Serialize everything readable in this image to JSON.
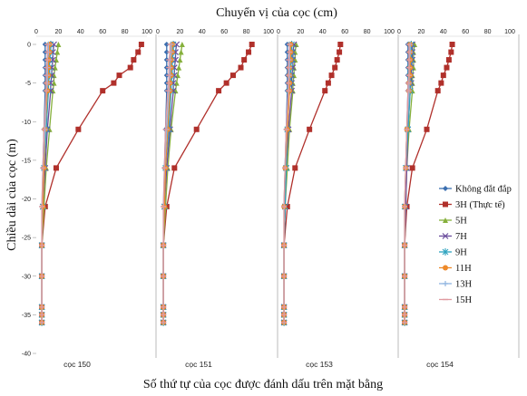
{
  "chart_data": {
    "type": "line",
    "title": "Chuyển vị của cọc (cm)",
    "xlabel": "Số thứ tự của cọc được đánh dấu trên mặt bằng",
    "ylabel": "Chiều dài của cọc (m)",
    "xlim": [
      0,
      100
    ],
    "ylim": [
      -40,
      0
    ],
    "xticks": [
      "0",
      "20",
      "40",
      "60",
      "80",
      "100"
    ],
    "yticks": [
      "0",
      "-5",
      "-10",
      "-15",
      "-20",
      "-25",
      "-30",
      "-35",
      "-40"
    ],
    "legend_position": "right",
    "depths": [
      0,
      -1,
      -2,
      -3,
      -4,
      -5,
      -6,
      -11,
      -16,
      -21,
      -26,
      -30,
      -34,
      -35,
      -36
    ],
    "legend": [
      {
        "name": "Không đắt đắp",
        "color": "#3b6fb0",
        "marker": "diamond"
      },
      {
        "name": "3H (Thực tế)",
        "color": "#b0302b",
        "marker": "square"
      },
      {
        "name": "5H",
        "color": "#86b03c",
        "marker": "triangle"
      },
      {
        "name": "7H",
        "color": "#6a4c9c",
        "marker": "x"
      },
      {
        "name": "9H",
        "color": "#2ea3bf",
        "marker": "star"
      },
      {
        "name": "11H",
        "color": "#ee8a2a",
        "marker": "circle"
      },
      {
        "name": "13H",
        "color": "#8fb4e0",
        "marker": "plus"
      },
      {
        "name": "15H",
        "color": "#e09aa0",
        "marker": "dash"
      }
    ],
    "panels": [
      {
        "label": "cọc 150",
        "series": [
          {
            "name": "Không đắt đắp",
            "values": [
              8,
              8,
              8,
              8,
              8,
              8,
              8,
              7,
              6,
              6,
              5,
              5,
              5,
              5,
              5
            ]
          },
          {
            "name": "3H (Thực tế)",
            "values": [
              95,
              92,
              88,
              85,
              75,
              70,
              60,
              38,
              18,
              8,
              5,
              5,
              5,
              5,
              5
            ]
          },
          {
            "name": "5H",
            "values": [
              20,
              19,
              18,
              17,
              16,
              16,
              15,
              12,
              9,
              7,
              5,
              5,
              5,
              5,
              5
            ]
          },
          {
            "name": "7H",
            "values": [
              16,
              15,
              15,
              14,
              14,
              13,
              13,
              10,
              8,
              6,
              5,
              5,
              5,
              5,
              5
            ]
          },
          {
            "name": "9H",
            "values": [
              13,
              13,
              12,
              12,
              12,
              11,
              11,
              9,
              7,
              6,
              5,
              5,
              5,
              5,
              5
            ]
          },
          {
            "name": "11H",
            "values": [
              12,
              12,
              11,
              11,
              11,
              10,
              10,
              8,
              7,
              6,
              5,
              5,
              5,
              5,
              5
            ]
          },
          {
            "name": "13H",
            "values": [
              11,
              11,
              10,
              10,
              10,
              10,
              9,
              8,
              6,
              5,
              5,
              5,
              5,
              5,
              5
            ]
          },
          {
            "name": "15H",
            "values": [
              10,
              10,
              10,
              9,
              9,
              9,
              9,
              7,
              6,
              5,
              5,
              5,
              5,
              5,
              5
            ]
          }
        ]
      },
      {
        "label": "cọc 151",
        "series": [
          {
            "name": "Không đắt đắp",
            "values": [
              8,
              8,
              8,
              8,
              8,
              8,
              8,
              7,
              6,
              6,
              5,
              5,
              5,
              5,
              5
            ]
          },
          {
            "name": "3H (Thực tế)",
            "values": [
              85,
              82,
              78,
              75,
              68,
              62,
              55,
              35,
              15,
              8,
              5,
              5,
              5,
              5,
              5
            ]
          },
          {
            "name": "5H",
            "values": [
              22,
              21,
              20,
              19,
              18,
              17,
              16,
              12,
              9,
              7,
              5,
              5,
              5,
              5,
              5
            ]
          },
          {
            "name": "7H",
            "values": [
              17,
              16,
              16,
              15,
              15,
              14,
              14,
              11,
              8,
              6,
              5,
              5,
              5,
              5,
              5
            ]
          },
          {
            "name": "9H",
            "values": [
              14,
              14,
              13,
              13,
              13,
              12,
              12,
              10,
              7,
              6,
              5,
              5,
              5,
              5,
              5
            ]
          },
          {
            "name": "11H",
            "values": [
              13,
              13,
              12,
              12,
              12,
              11,
              11,
              9,
              7,
              6,
              5,
              5,
              5,
              5,
              5
            ]
          },
          {
            "name": "13H",
            "values": [
              12,
              12,
              11,
              11,
              11,
              10,
              10,
              8,
              6,
              5,
              5,
              5,
              5,
              5,
              5
            ]
          },
          {
            "name": "15H",
            "values": [
              11,
              11,
              10,
              10,
              10,
              10,
              9,
              7,
              6,
              5,
              5,
              5,
              5,
              5,
              5
            ]
          }
        ]
      },
      {
        "label": "cọc 153",
        "series": [
          {
            "name": "Không đắt đắp",
            "values": [
              8,
              8,
              8,
              8,
              8,
              8,
              8,
              7,
              6,
              6,
              5,
              5,
              5,
              5,
              5
            ]
          },
          {
            "name": "3H (Thực tế)",
            "values": [
              56,
              55,
              53,
              51,
              48,
              45,
              42,
              28,
              15,
              8,
              5,
              5,
              5,
              5,
              5
            ]
          },
          {
            "name": "5H",
            "values": [
              16,
              15,
              15,
              14,
              14,
              13,
              13,
              10,
              8,
              6,
              5,
              5,
              5,
              5,
              5
            ]
          },
          {
            "name": "7H",
            "values": [
              14,
              13,
              13,
              13,
              12,
              12,
              12,
              9,
              7,
              6,
              5,
              5,
              5,
              5,
              5
            ]
          },
          {
            "name": "9H",
            "values": [
              12,
              12,
              12,
              11,
              11,
              11,
              10,
              8,
              7,
              6,
              5,
              5,
              5,
              5,
              5
            ]
          },
          {
            "name": "11H",
            "values": [
              11,
              11,
              11,
              10,
              10,
              10,
              10,
              8,
              6,
              5,
              5,
              5,
              5,
              5,
              5
            ]
          },
          {
            "name": "13H",
            "values": [
              10,
              10,
              10,
              10,
              10,
              9,
              9,
              7,
              6,
              5,
              5,
              5,
              5,
              5,
              5
            ]
          },
          {
            "name": "15H",
            "values": [
              10,
              10,
              9,
              9,
              9,
              9,
              9,
              7,
              6,
              5,
              5,
              5,
              5,
              5,
              5
            ]
          }
        ]
      },
      {
        "label": "cọc 154",
        "series": [
          {
            "name": "Không đắt đắp",
            "values": [
              8,
              8,
              8,
              8,
              8,
              8,
              8,
              7,
              6,
              6,
              5,
              5,
              5,
              5,
              5
            ]
          },
          {
            "name": "3H (Thực tế)",
            "values": [
              48,
              47,
              45,
              43,
              40,
              38,
              35,
              25,
              12,
              7,
              5,
              5,
              5,
              5,
              5
            ]
          },
          {
            "name": "5H",
            "values": [
              14,
              13,
              13,
              13,
              12,
              12,
              12,
              9,
              7,
              6,
              5,
              5,
              5,
              5,
              5
            ]
          },
          {
            "name": "7H",
            "values": [
              12,
              12,
              12,
              11,
              11,
              11,
              10,
              8,
              7,
              6,
              5,
              5,
              5,
              5,
              5
            ]
          },
          {
            "name": "9H",
            "values": [
              11,
              11,
              11,
              10,
              10,
              10,
              10,
              8,
              6,
              5,
              5,
              5,
              5,
              5,
              5
            ]
          },
          {
            "name": "11H",
            "values": [
              10,
              10,
              10,
              10,
              10,
              9,
              9,
              7,
              6,
              5,
              5,
              5,
              5,
              5,
              5
            ]
          },
          {
            "name": "13H",
            "values": [
              10,
              10,
              9,
              9,
              9,
              9,
              9,
              7,
              6,
              5,
              5,
              5,
              5,
              5,
              5
            ]
          },
          {
            "name": "15H",
            "values": [
              9,
              9,
              9,
              9,
              9,
              8,
              8,
              7,
              6,
              5,
              5,
              5,
              5,
              5,
              5
            ]
          }
        ]
      }
    ]
  }
}
